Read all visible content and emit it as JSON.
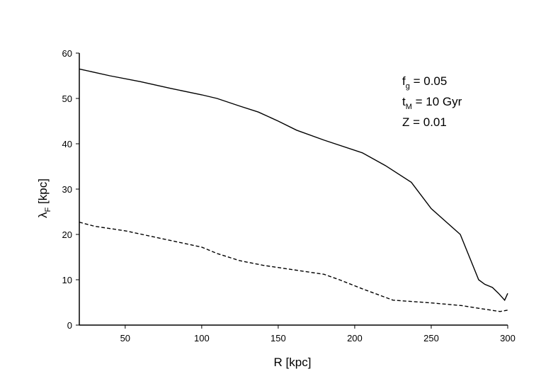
{
  "chart_data": {
    "type": "line",
    "x_label": "R [kpc]",
    "y_label": [
      "λ",
      "F",
      " [kpc]"
    ],
    "annotations": [
      [
        "f",
        "g",
        " = 0.05"
      ],
      [
        "t",
        "M",
        " = 10 Gyr"
      ],
      [
        "Z = 0.01"
      ]
    ],
    "xlim": [
      20,
      300
    ],
    "xticks": [
      50,
      100,
      150,
      200,
      250,
      300
    ],
    "ylim": [
      0,
      60
    ],
    "yticks": [
      0,
      10,
      20,
      30,
      40,
      50,
      60
    ],
    "series": [
      {
        "color": "#000000",
        "dashed": false,
        "x": [
          20,
          40,
          60,
          80,
          100,
          110,
          125,
          137,
          150,
          162,
          180,
          205,
          220,
          237,
          250,
          260,
          269,
          275,
          281,
          285,
          290,
          294,
          298,
          300
        ],
        "values": [
          56.5,
          55,
          53.7,
          52.2,
          50.8,
          50,
          48.3,
          47,
          45,
          43,
          40.8,
          38,
          35.2,
          31.5,
          25.7,
          22.7,
          20,
          15,
          10,
          9,
          8.3,
          7,
          5.5,
          7
        ]
      },
      {
        "color": "#000000",
        "dashed": true,
        "x": [
          20,
          30,
          50,
          75,
          100,
          110,
          125,
          140,
          160,
          180,
          190,
          205,
          225,
          250,
          270,
          285,
          295,
          300
        ],
        "values": [
          22.7,
          21.8,
          20.8,
          19,
          17.2,
          15.8,
          14.2,
          13.2,
          12.2,
          11.2,
          10,
          8,
          5.5,
          4.9,
          4.3,
          3.5,
          3,
          3.3
        ]
      }
    ]
  }
}
